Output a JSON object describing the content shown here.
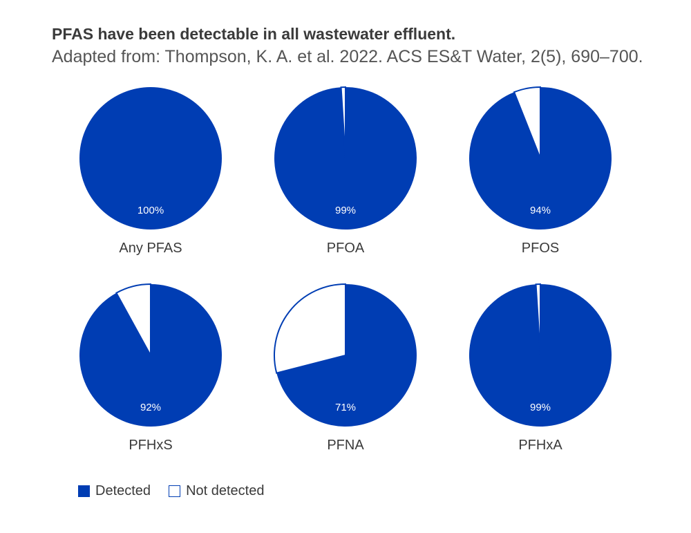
{
  "title": "PFAS have been detectable in all wastewater effluent.",
  "subtitle": "Adapted from: Thompson, K. A. et al. 2022. ACS ES&T Water, 2(5), 690–700.",
  "colors": {
    "detected": "#003db3",
    "not_detected": "#ffffff",
    "text": "#3a3a3a"
  },
  "legend": {
    "detected_label": "Detected",
    "not_detected_label": "Not detected",
    "placement": "bottom-left"
  },
  "chart_data": [
    {
      "type": "pie",
      "name": "Any PFAS",
      "categories": [
        "Detected",
        "Not detected"
      ],
      "values": [
        100,
        0
      ],
      "label": "100%"
    },
    {
      "type": "pie",
      "name": "PFOA",
      "categories": [
        "Detected",
        "Not detected"
      ],
      "values": [
        99,
        1
      ],
      "label": "99%"
    },
    {
      "type": "pie",
      "name": "PFOS",
      "categories": [
        "Detected",
        "Not detected"
      ],
      "values": [
        94,
        6
      ],
      "label": "94%"
    },
    {
      "type": "pie",
      "name": "PFHxS",
      "categories": [
        "Detected",
        "Not detected"
      ],
      "values": [
        92,
        8
      ],
      "label": "92%"
    },
    {
      "type": "pie",
      "name": "PFNA",
      "categories": [
        "Detected",
        "Not detected"
      ],
      "values": [
        71,
        29
      ],
      "label": "71%"
    },
    {
      "type": "pie",
      "name": "PFHxA",
      "categories": [
        "Detected",
        "Not detected"
      ],
      "values": [
        99,
        1
      ],
      "label": "99%"
    }
  ]
}
